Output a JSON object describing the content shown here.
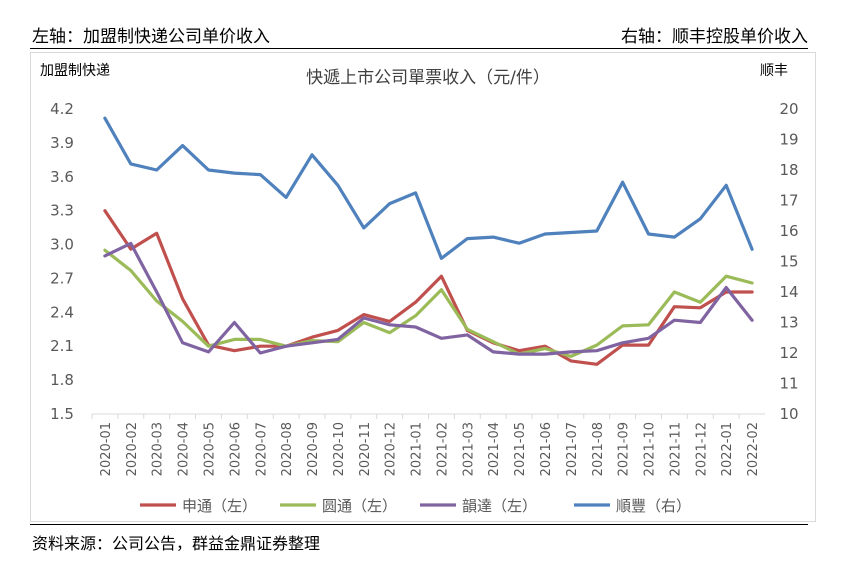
{
  "header": {
    "left": "左轴：加盟制快递公司单价收入",
    "right": "右轴：顺丰控股单价收入"
  },
  "source": "资料来源：公司公告，群益金鼎证券整理",
  "chart_data": {
    "type": "line",
    "title": "快遞上市公司單票收入（元/件）",
    "ylabel_left": "加盟制快递",
    "ylabel_right": "顺丰",
    "categories": [
      "2020-01",
      "2020-02",
      "2020-03",
      "2020-04",
      "2020-05",
      "2020-06",
      "2020-07",
      "2020-08",
      "2020-09",
      "2020-10",
      "2020-11",
      "2020-12",
      "2021-01",
      "2021-02",
      "2021-03",
      "2021-04",
      "2021-05",
      "2021-06",
      "2021-07",
      "2021-08",
      "2021-09",
      "2021-10",
      "2021-11",
      "2021-12",
      "2022-01",
      "2022-02"
    ],
    "ylim_left": [
      1.5,
      4.2
    ],
    "yticks_left": [
      "1.5",
      "1.8",
      "2.1",
      "2.4",
      "2.7",
      "3.0",
      "3.3",
      "3.6",
      "3.9",
      "4.2"
    ],
    "ylim_right": [
      10,
      20
    ],
    "yticks_right": [
      "10",
      "11",
      "12",
      "13",
      "14",
      "15",
      "16",
      "17",
      "18",
      "19",
      "20"
    ],
    "grid": false,
    "legend_position": "bottom",
    "series": [
      {
        "name": "申通（左）",
        "axis": "left",
        "color": "#C0504D",
        "values": [
          3.3,
          2.96,
          3.1,
          2.52,
          2.11,
          2.06,
          2.1,
          2.1,
          2.18,
          2.24,
          2.38,
          2.32,
          2.49,
          2.72,
          2.24,
          2.13,
          2.06,
          2.1,
          1.97,
          1.94,
          2.11,
          2.11,
          2.45,
          2.44,
          2.58,
          2.58
        ]
      },
      {
        "name": "圆通（左）",
        "axis": "left",
        "color": "#9BBB59",
        "values": [
          2.95,
          2.77,
          2.5,
          2.32,
          2.1,
          2.16,
          2.16,
          2.1,
          2.15,
          2.14,
          2.31,
          2.22,
          2.37,
          2.6,
          2.25,
          2.14,
          2.03,
          2.08,
          2.01,
          2.11,
          2.28,
          2.29,
          2.58,
          2.49,
          2.72,
          2.66
        ]
      },
      {
        "name": "韻達（左）",
        "axis": "left",
        "color": "#8064A2",
        "values": [
          2.9,
          3.01,
          2.58,
          2.13,
          2.05,
          2.31,
          2.04,
          2.1,
          2.13,
          2.16,
          2.35,
          2.29,
          2.27,
          2.17,
          2.2,
          2.05,
          2.03,
          2.03,
          2.05,
          2.06,
          2.13,
          2.17,
          2.33,
          2.31,
          2.62,
          2.33
        ]
      },
      {
        "name": "順豐（右）",
        "axis": "right",
        "color": "#4F81BD",
        "values": [
          19.7,
          18.2,
          18.0,
          18.8,
          18.0,
          17.9,
          17.85,
          17.1,
          18.5,
          17.5,
          16.1,
          16.9,
          17.25,
          15.1,
          15.75,
          15.8,
          15.6,
          15.9,
          15.95,
          16.0,
          17.6,
          15.9,
          15.8,
          16.4,
          17.5,
          15.4
        ]
      }
    ]
  }
}
